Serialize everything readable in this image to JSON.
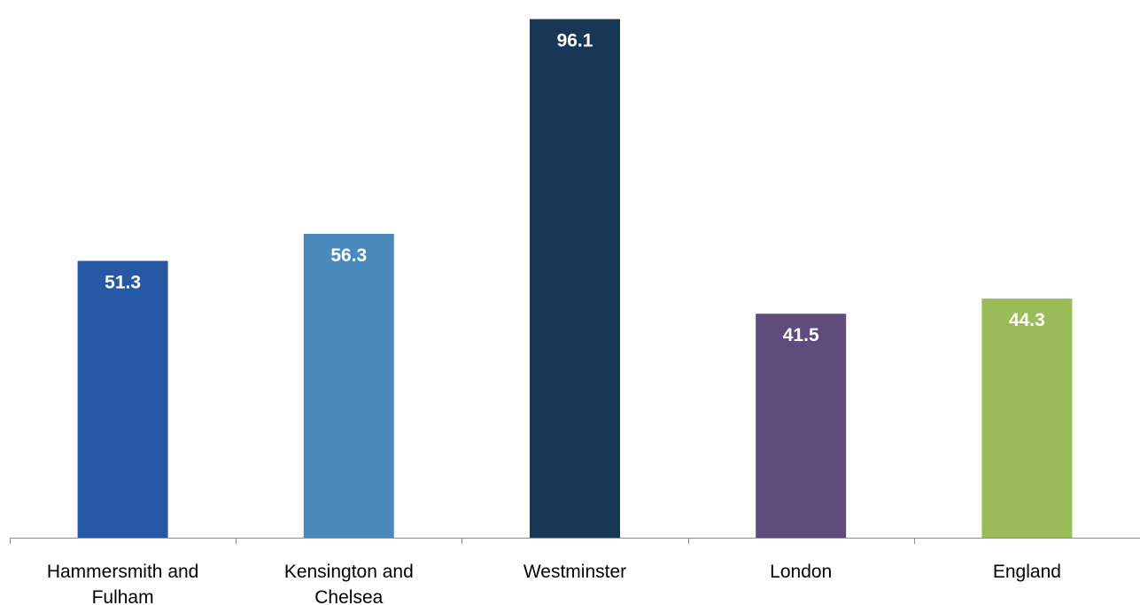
{
  "chart_data": {
    "type": "bar",
    "categories": [
      [
        "Hammersmith and",
        "Fulham"
      ],
      [
        "Kensington and",
        "Chelsea"
      ],
      [
        "Westminster"
      ],
      [
        "London"
      ],
      [
        "England"
      ]
    ],
    "values": [
      51.3,
      56.3,
      96.1,
      41.5,
      44.3
    ],
    "data_labels": [
      "51.3",
      "56.3",
      "96.1",
      "41.5",
      "44.3"
    ],
    "colors": [
      "#2558a5",
      "#4a89bb",
      "#183756",
      "#5f4b7c",
      "#9bbb59"
    ],
    "title": "",
    "xlabel": "",
    "ylabel": "",
    "ylim": [
      0,
      98
    ],
    "grid": false,
    "legend": "none",
    "y_axis_visible": false
  }
}
